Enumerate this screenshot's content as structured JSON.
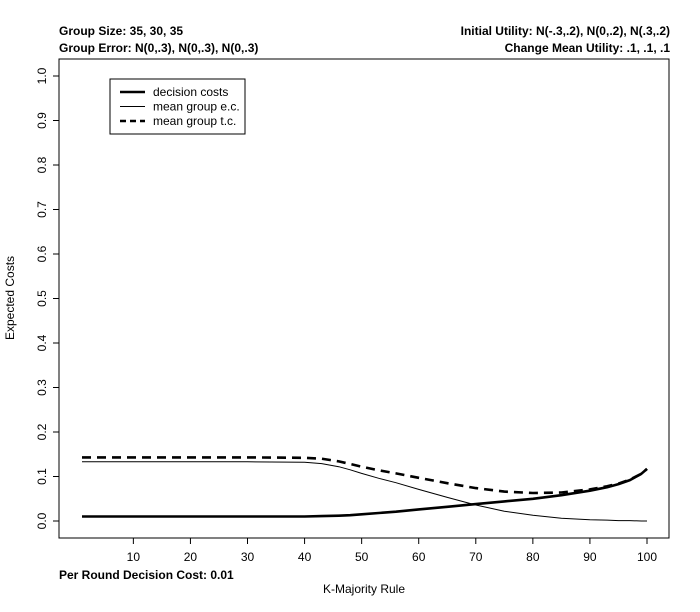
{
  "header": {
    "top_left": "Group Size: 35, 30, 35",
    "second_left": "Group Error: N(0,.3), N(0,.3), N(0,.3)",
    "top_right": "Initial Utility: N(-.3,.2), N(0,.2), N(.3,.2)",
    "second_right": "Change Mean Utility: .1, .1, .1"
  },
  "footer": {
    "decision_cost_note": "Per Round Decision Cost: 0.01"
  },
  "chart_data": {
    "type": "line",
    "title": "",
    "xlabel": "K-Majority Rule",
    "ylabel": "Expected Costs",
    "xlim": [
      1,
      100
    ],
    "ylim": [
      0,
      1
    ],
    "x_ticks": [
      10,
      20,
      30,
      40,
      50,
      60,
      70,
      80,
      90,
      100
    ],
    "y_ticks": [
      "0.0",
      "0.1",
      "0.2",
      "0.3",
      "0.4",
      "0.5",
      "0.6",
      "0.7",
      "0.8",
      "0.9",
      "1.0"
    ],
    "grid": false,
    "legend_position": "top-left",
    "x": [
      1,
      10,
      20,
      30,
      40,
      43,
      46,
      48,
      50,
      53,
      56,
      60,
      65,
      70,
      75,
      80,
      85,
      90,
      93,
      95,
      97,
      99,
      100
    ],
    "series": [
      {
        "name": "decision costs",
        "style": "thick-solid",
        "color": "#000000",
        "values": [
          0.01,
          0.01,
          0.01,
          0.01,
          0.01,
          0.011,
          0.012,
          0.013,
          0.015,
          0.018,
          0.021,
          0.026,
          0.032,
          0.038,
          0.044,
          0.05,
          0.058,
          0.068,
          0.076,
          0.083,
          0.092,
          0.106,
          0.117
        ]
      },
      {
        "name": "mean group e.c.",
        "style": "thin-solid",
        "color": "#000000",
        "values": [
          0.133,
          0.133,
          0.133,
          0.133,
          0.132,
          0.129,
          0.122,
          0.115,
          0.107,
          0.096,
          0.086,
          0.071,
          0.053,
          0.036,
          0.022,
          0.013,
          0.006,
          0.003,
          0.002,
          0.001,
          0.001,
          0.0,
          0.0
        ]
      },
      {
        "name": "mean group t.c.",
        "style": "thick-dashed",
        "color": "#000000",
        "values": [
          0.143,
          0.143,
          0.143,
          0.143,
          0.142,
          0.14,
          0.134,
          0.128,
          0.122,
          0.114,
          0.107,
          0.097,
          0.085,
          0.074,
          0.066,
          0.063,
          0.064,
          0.071,
          0.078,
          0.084,
          0.093,
          0.106,
          0.117
        ]
      }
    ]
  }
}
